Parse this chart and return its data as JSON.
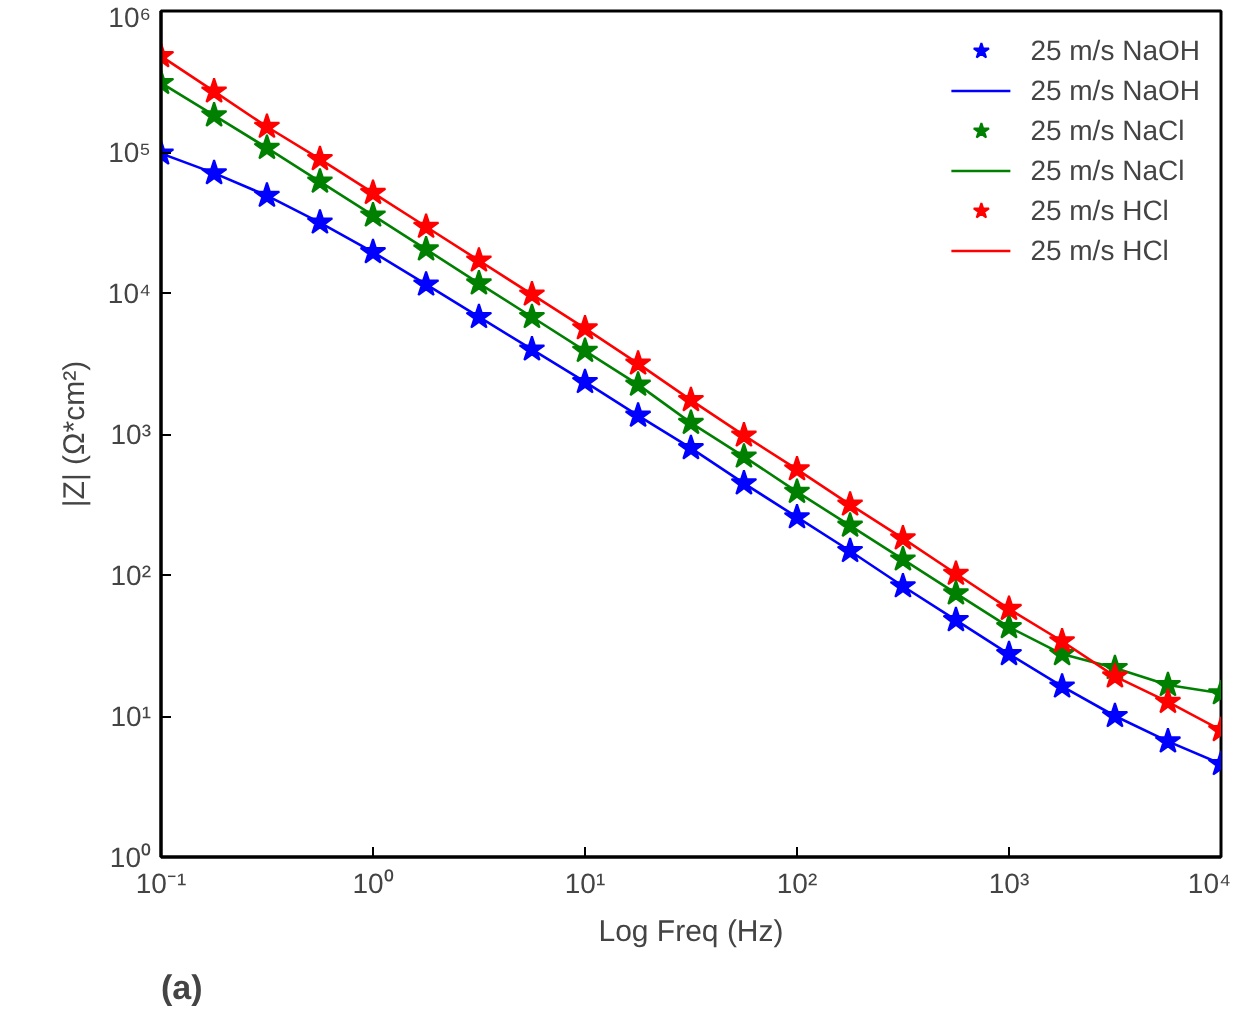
{
  "chart_data": {
    "type": "scatter",
    "xlabel": "Log Freq (Hz)",
    "ylabel": "|Z| (Ω*cm²)",
    "annotations": [
      "(a)"
    ],
    "log": "xy",
    "grid": false,
    "legend": "top right",
    "xlim": [
      0.1,
      10000
    ],
    "ylim": [
      1,
      1000000
    ],
    "xticks": [
      {
        "value": 0.1,
        "label": "10⁻¹"
      },
      {
        "value": 1,
        "label": "10⁰"
      },
      {
        "value": 10,
        "label": "10¹"
      },
      {
        "value": 100,
        "label": "10²"
      },
      {
        "value": 1000,
        "label": "10³"
      },
      {
        "value": 10000,
        "label": "10⁴"
      }
    ],
    "yticks": [
      {
        "value": 1,
        "label": "10⁰"
      },
      {
        "value": 10,
        "label": "10¹"
      },
      {
        "value": 100,
        "label": "10²"
      },
      {
        "value": 1000,
        "label": "10³"
      },
      {
        "value": 10000,
        "label": "10⁴"
      },
      {
        "value": 100000,
        "label": "10⁵"
      },
      {
        "value": 1000000,
        "label": "10⁶"
      }
    ],
    "x": [
      0.1,
      0.178,
      0.316,
      0.562,
      1,
      1.78,
      3.16,
      5.62,
      10,
      17.8,
      31.6,
      56.2,
      100,
      178,
      316,
      562,
      1000,
      1780,
      3160,
      5620,
      10000
    ],
    "series": [
      {
        "name": "25 m/s NaOH",
        "marker": "star",
        "color": "#0000ff",
        "values": [
          97700,
          70800,
          49000,
          31600,
          19500,
          11500,
          6760,
          3980,
          2340,
          1350,
          794,
          447,
          257,
          148,
          83.2,
          47.9,
          27.5,
          16.2,
          10,
          6.61,
          4.57
        ]
      },
      {
        "name": "25 m/s NaOH",
        "type": "line",
        "marker": "none",
        "color": "#0000ff",
        "values": [
          97700,
          70800,
          49000,
          31600,
          19500,
          11500,
          6760,
          3980,
          2340,
          1350,
          794,
          447,
          257,
          148,
          83.2,
          47.9,
          27.5,
          16.2,
          10,
          6.61,
          4.57
        ]
      },
      {
        "name": "25 m/s NaCl",
        "marker": "star",
        "color": "#008000",
        "values": [
          309000,
          182000,
          107000,
          61700,
          35500,
          20400,
          11700,
          6760,
          3890,
          2240,
          1200,
          692,
          389,
          224,
          129,
          74.1,
          42.7,
          27.5,
          21.9,
          16.6,
          14.5
        ]
      },
      {
        "name": "25 m/s NaCl",
        "type": "line",
        "marker": "none",
        "color": "#008000",
        "values": [
          309000,
          182000,
          107000,
          61700,
          35500,
          20400,
          11700,
          6760,
          3890,
          2240,
          1200,
          692,
          389,
          224,
          129,
          74.1,
          42.7,
          27.5,
          21.9,
          16.6,
          14.5
        ]
      },
      {
        "name": "25 m/s HCl",
        "marker": "star",
        "color": "#ff0000",
        "values": [
          479000,
          269000,
          151000,
          89100,
          51300,
          29500,
          17000,
          9770,
          5620,
          3160,
          1740,
          977,
          562,
          316,
          182,
          102,
          57.5,
          33.9,
          19.1,
          12.6,
          7.94
        ]
      },
      {
        "name": "25 m/s HCl",
        "type": "line",
        "marker": "none",
        "color": "#ff0000",
        "values": [
          479000,
          269000,
          151000,
          89100,
          51300,
          29500,
          17000,
          9770,
          5620,
          3160,
          1740,
          977,
          562,
          316,
          182,
          102,
          57.5,
          33.9,
          19.1,
          12.6,
          7.94
        ]
      }
    ]
  }
}
